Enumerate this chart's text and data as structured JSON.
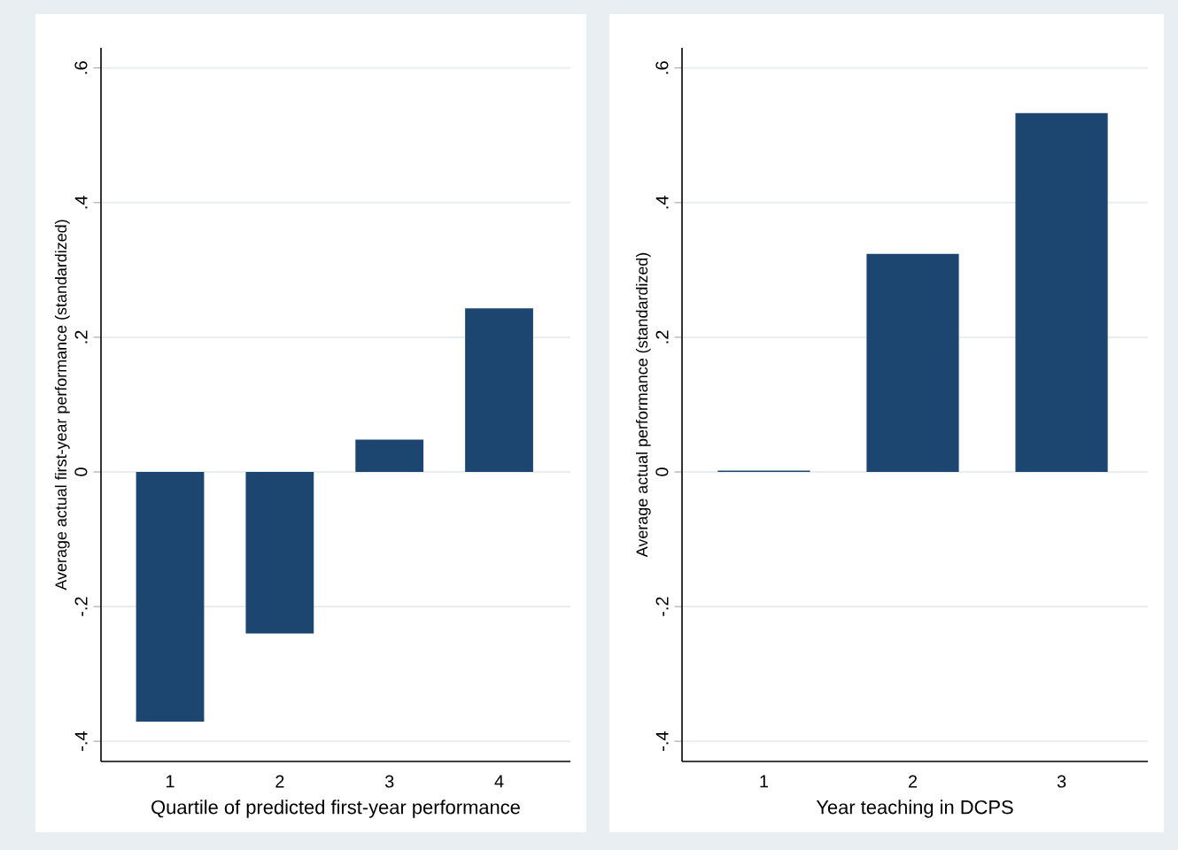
{
  "chart_data": [
    {
      "type": "bar",
      "xlabel": "Quartile of predicted first-year performance",
      "ylabel": "Average actual first-year performance (standardized)",
      "categories": [
        "1",
        "2",
        "3",
        "4"
      ],
      "values": [
        -0.371,
        -0.24,
        0.048,
        0.243
      ],
      "color": "#1c4670",
      "ylim": [
        -0.43,
        0.63
      ],
      "yticks": [
        {
          "value": -0.4,
          "label": "-.4"
        },
        {
          "value": -0.2,
          "label": "-.2"
        },
        0,
        {
          "value": 0.2,
          "label": ".2"
        },
        {
          "value": 0.4,
          "label": ".4"
        },
        {
          "value": 0.6,
          "label": ".6"
        }
      ],
      "grid": "y"
    },
    {
      "type": "bar",
      "xlabel": "Year teaching in DCPS",
      "ylabel": "Average actual performance (standardized)",
      "categories": [
        "1",
        "2",
        "3"
      ],
      "values": [
        0.002,
        0.324,
        0.533
      ],
      "color": "#1c4670",
      "ylim": [
        -0.43,
        0.63
      ],
      "yticks": [
        {
          "value": -0.4,
          "label": "-.4"
        },
        {
          "value": -0.2,
          "label": "-.2"
        },
        0,
        {
          "value": 0.2,
          "label": ".2"
        },
        {
          "value": 0.4,
          "label": ".4"
        },
        {
          "value": 0.6,
          "label": ".6"
        }
      ],
      "grid": "y"
    }
  ]
}
